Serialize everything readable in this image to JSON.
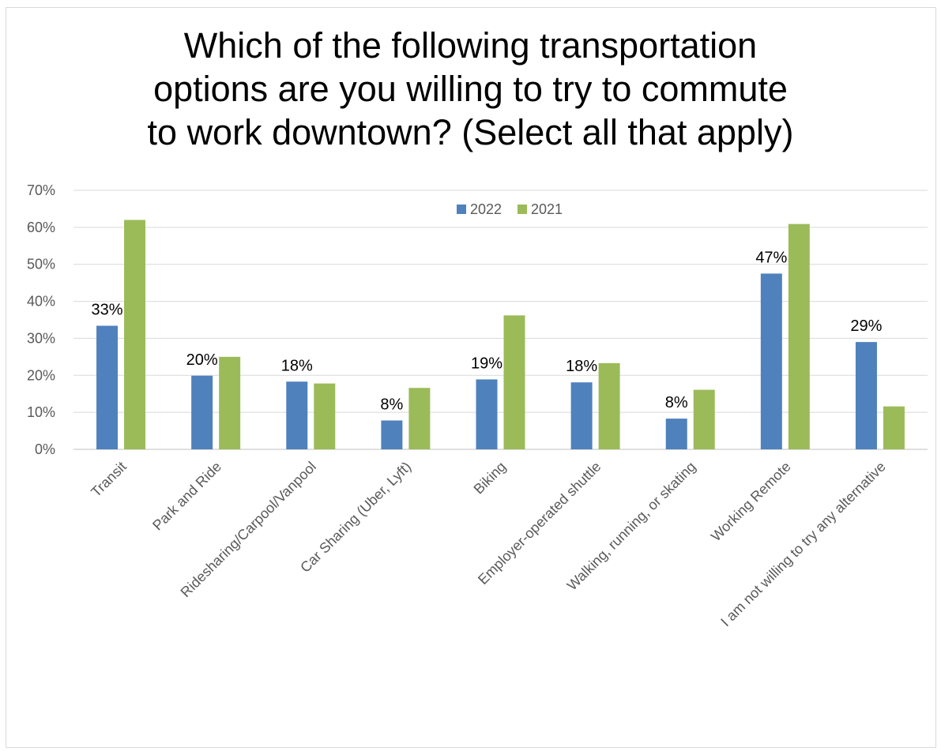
{
  "chart_data": {
    "type": "bar",
    "title_lines": [
      "Which of the following transportation",
      "options are you willing to try to commute",
      "to work downtown? (Select all that apply)"
    ],
    "categories": [
      "Transit",
      "Park and Ride",
      "Ridesharing/Carpool/Vanpool",
      "Car Sharing (Uber, Lyft)",
      "Biking",
      "Employer-operated shuttle",
      "Walking, running, or skating",
      "Working Remote",
      "I am not willing to try any alternative"
    ],
    "series": [
      {
        "name": "2022",
        "color": "#4f81bd",
        "values": [
          0.334,
          0.199,
          0.183,
          0.078,
          0.189,
          0.181,
          0.083,
          0.475,
          0.29
        ],
        "data_labels": [
          "33%",
          "20%",
          "18%",
          "8%",
          "19%",
          "18%",
          "8%",
          "47%",
          "29%"
        ]
      },
      {
        "name": "2021",
        "color": "#9bbb59",
        "values": [
          0.62,
          0.25,
          0.178,
          0.166,
          0.362,
          0.233,
          0.161,
          0.609,
          0.116
        ]
      }
    ],
    "y_ticks": [
      "0%",
      "10%",
      "20%",
      "30%",
      "40%",
      "50%",
      "60%",
      "70%"
    ],
    "ylim": [
      0,
      0.7
    ],
    "xlabel": "",
    "ylabel": "",
    "grid": true,
    "legend_position": "top-center"
  }
}
